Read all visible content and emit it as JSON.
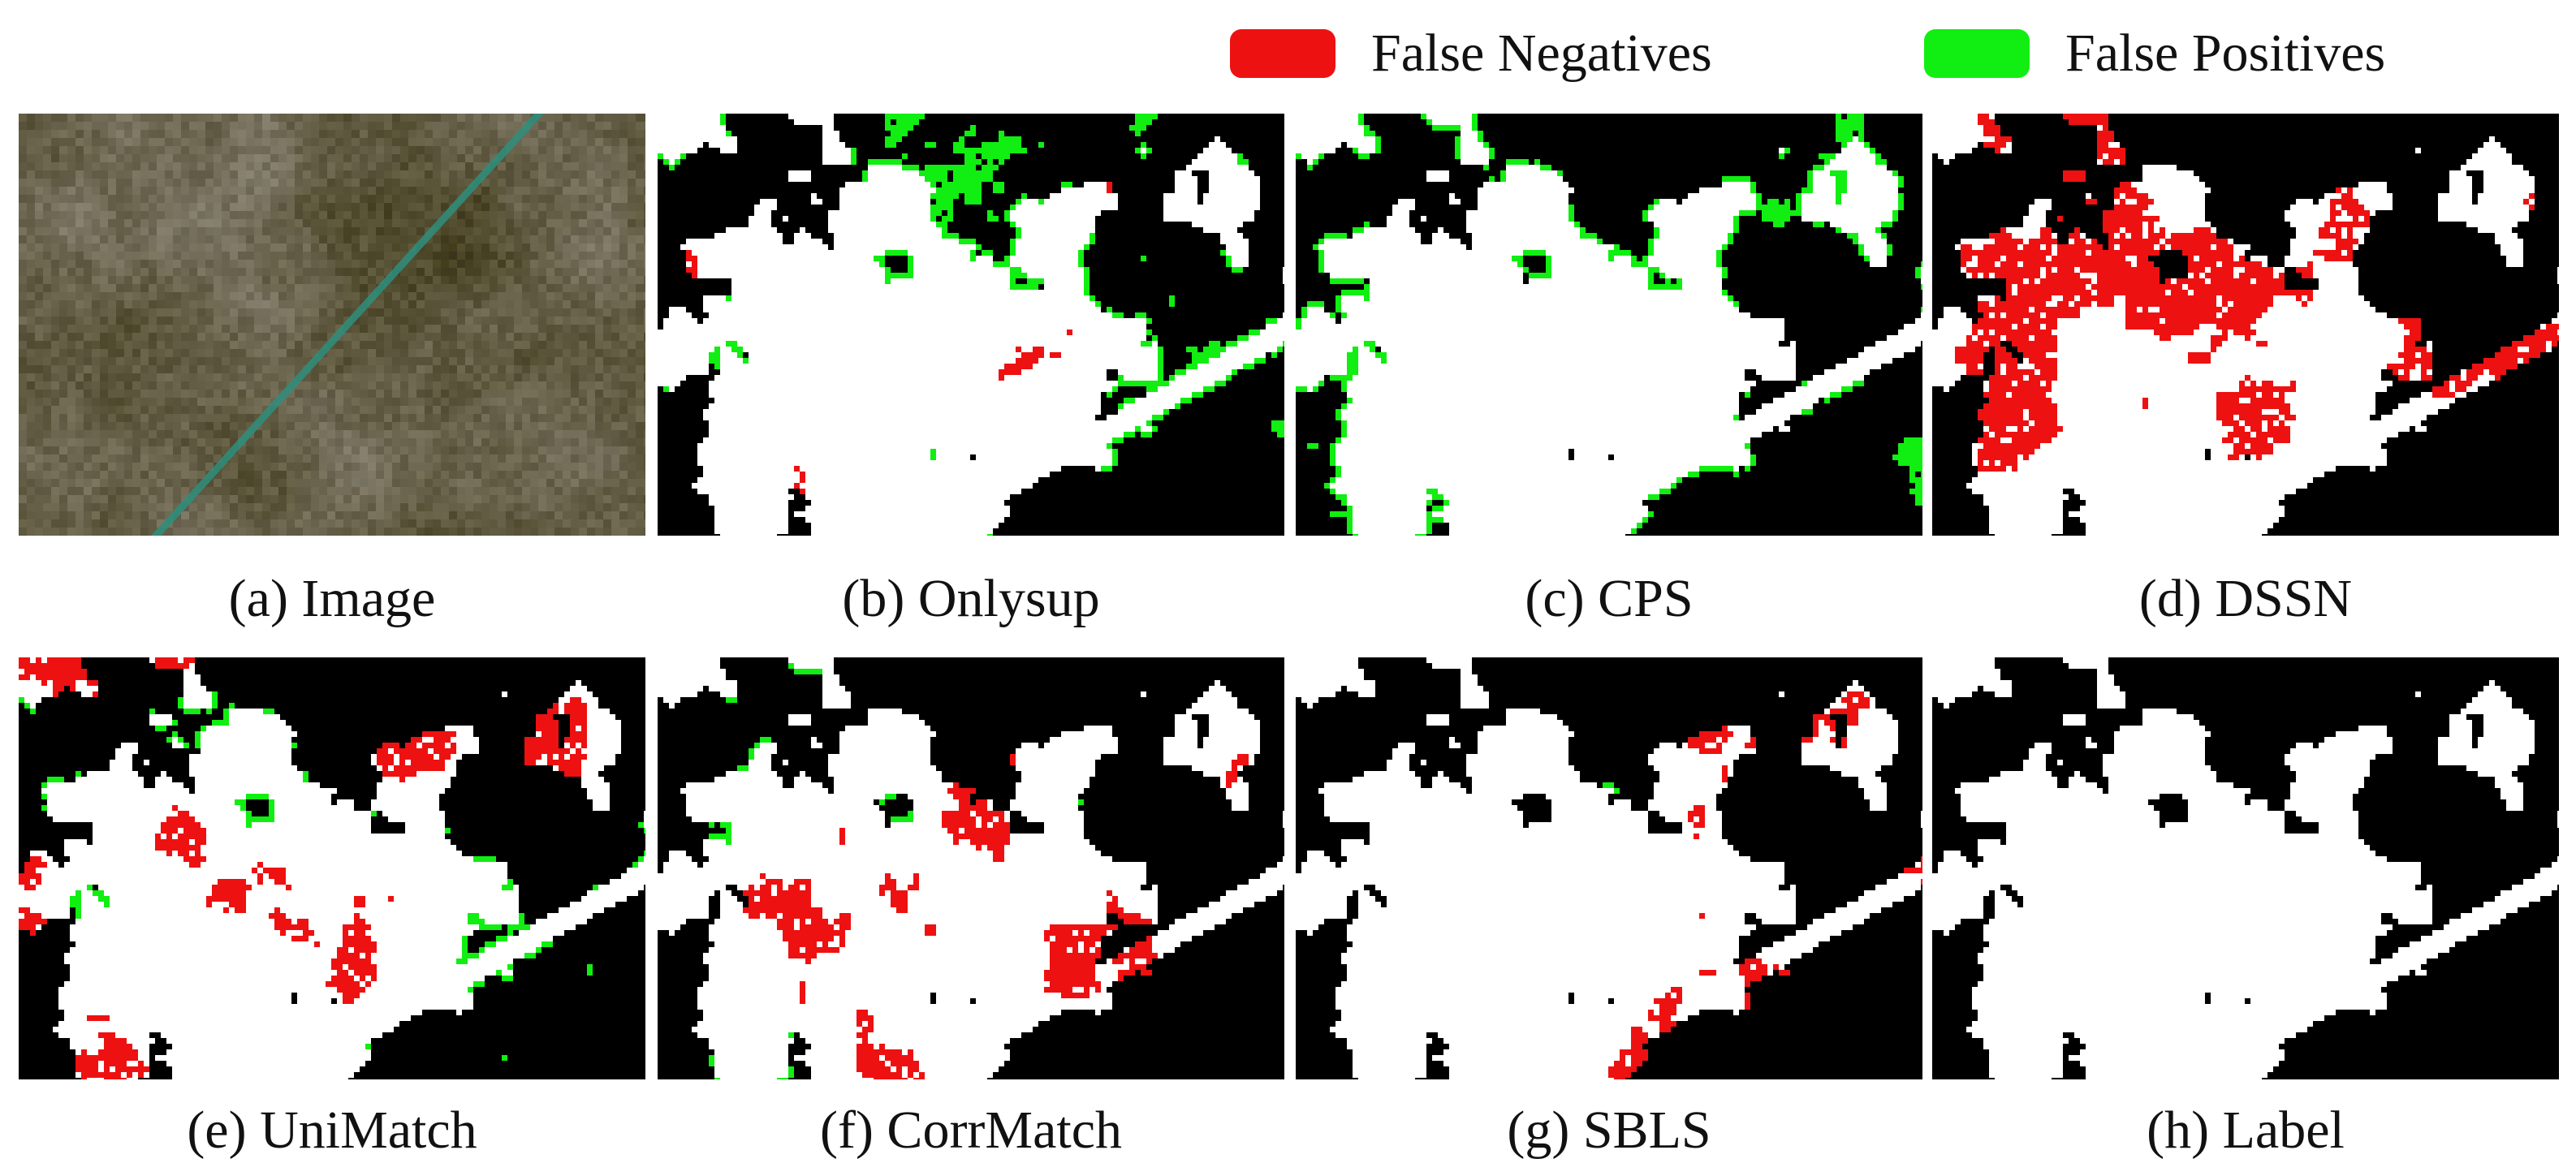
{
  "legend": [
    {
      "label": "False Negatives",
      "color": "#ee1111"
    },
    {
      "label": "False Positives",
      "color": "#11ee11"
    }
  ],
  "panels": [
    {
      "id": "a",
      "caption": "(a) Image"
    },
    {
      "id": "b",
      "caption": "(b) Onlysup"
    },
    {
      "id": "c",
      "caption": "(c) CPS"
    },
    {
      "id": "d",
      "caption": "(d) DSSN"
    },
    {
      "id": "e",
      "caption": "(e) UniMatch"
    },
    {
      "id": "f",
      "caption": "(f) CorrMatch"
    },
    {
      "id": "g",
      "caption": "(g) SBLS"
    },
    {
      "id": "h",
      "caption": "(h) Label"
    }
  ],
  "colors": {
    "background": "#000000",
    "true_positive": "#ffffff",
    "false_negative": "#ee1111",
    "false_positive": "#11ee11",
    "image_ground": "#7a7258",
    "image_strip": "#2e8f7d"
  }
}
